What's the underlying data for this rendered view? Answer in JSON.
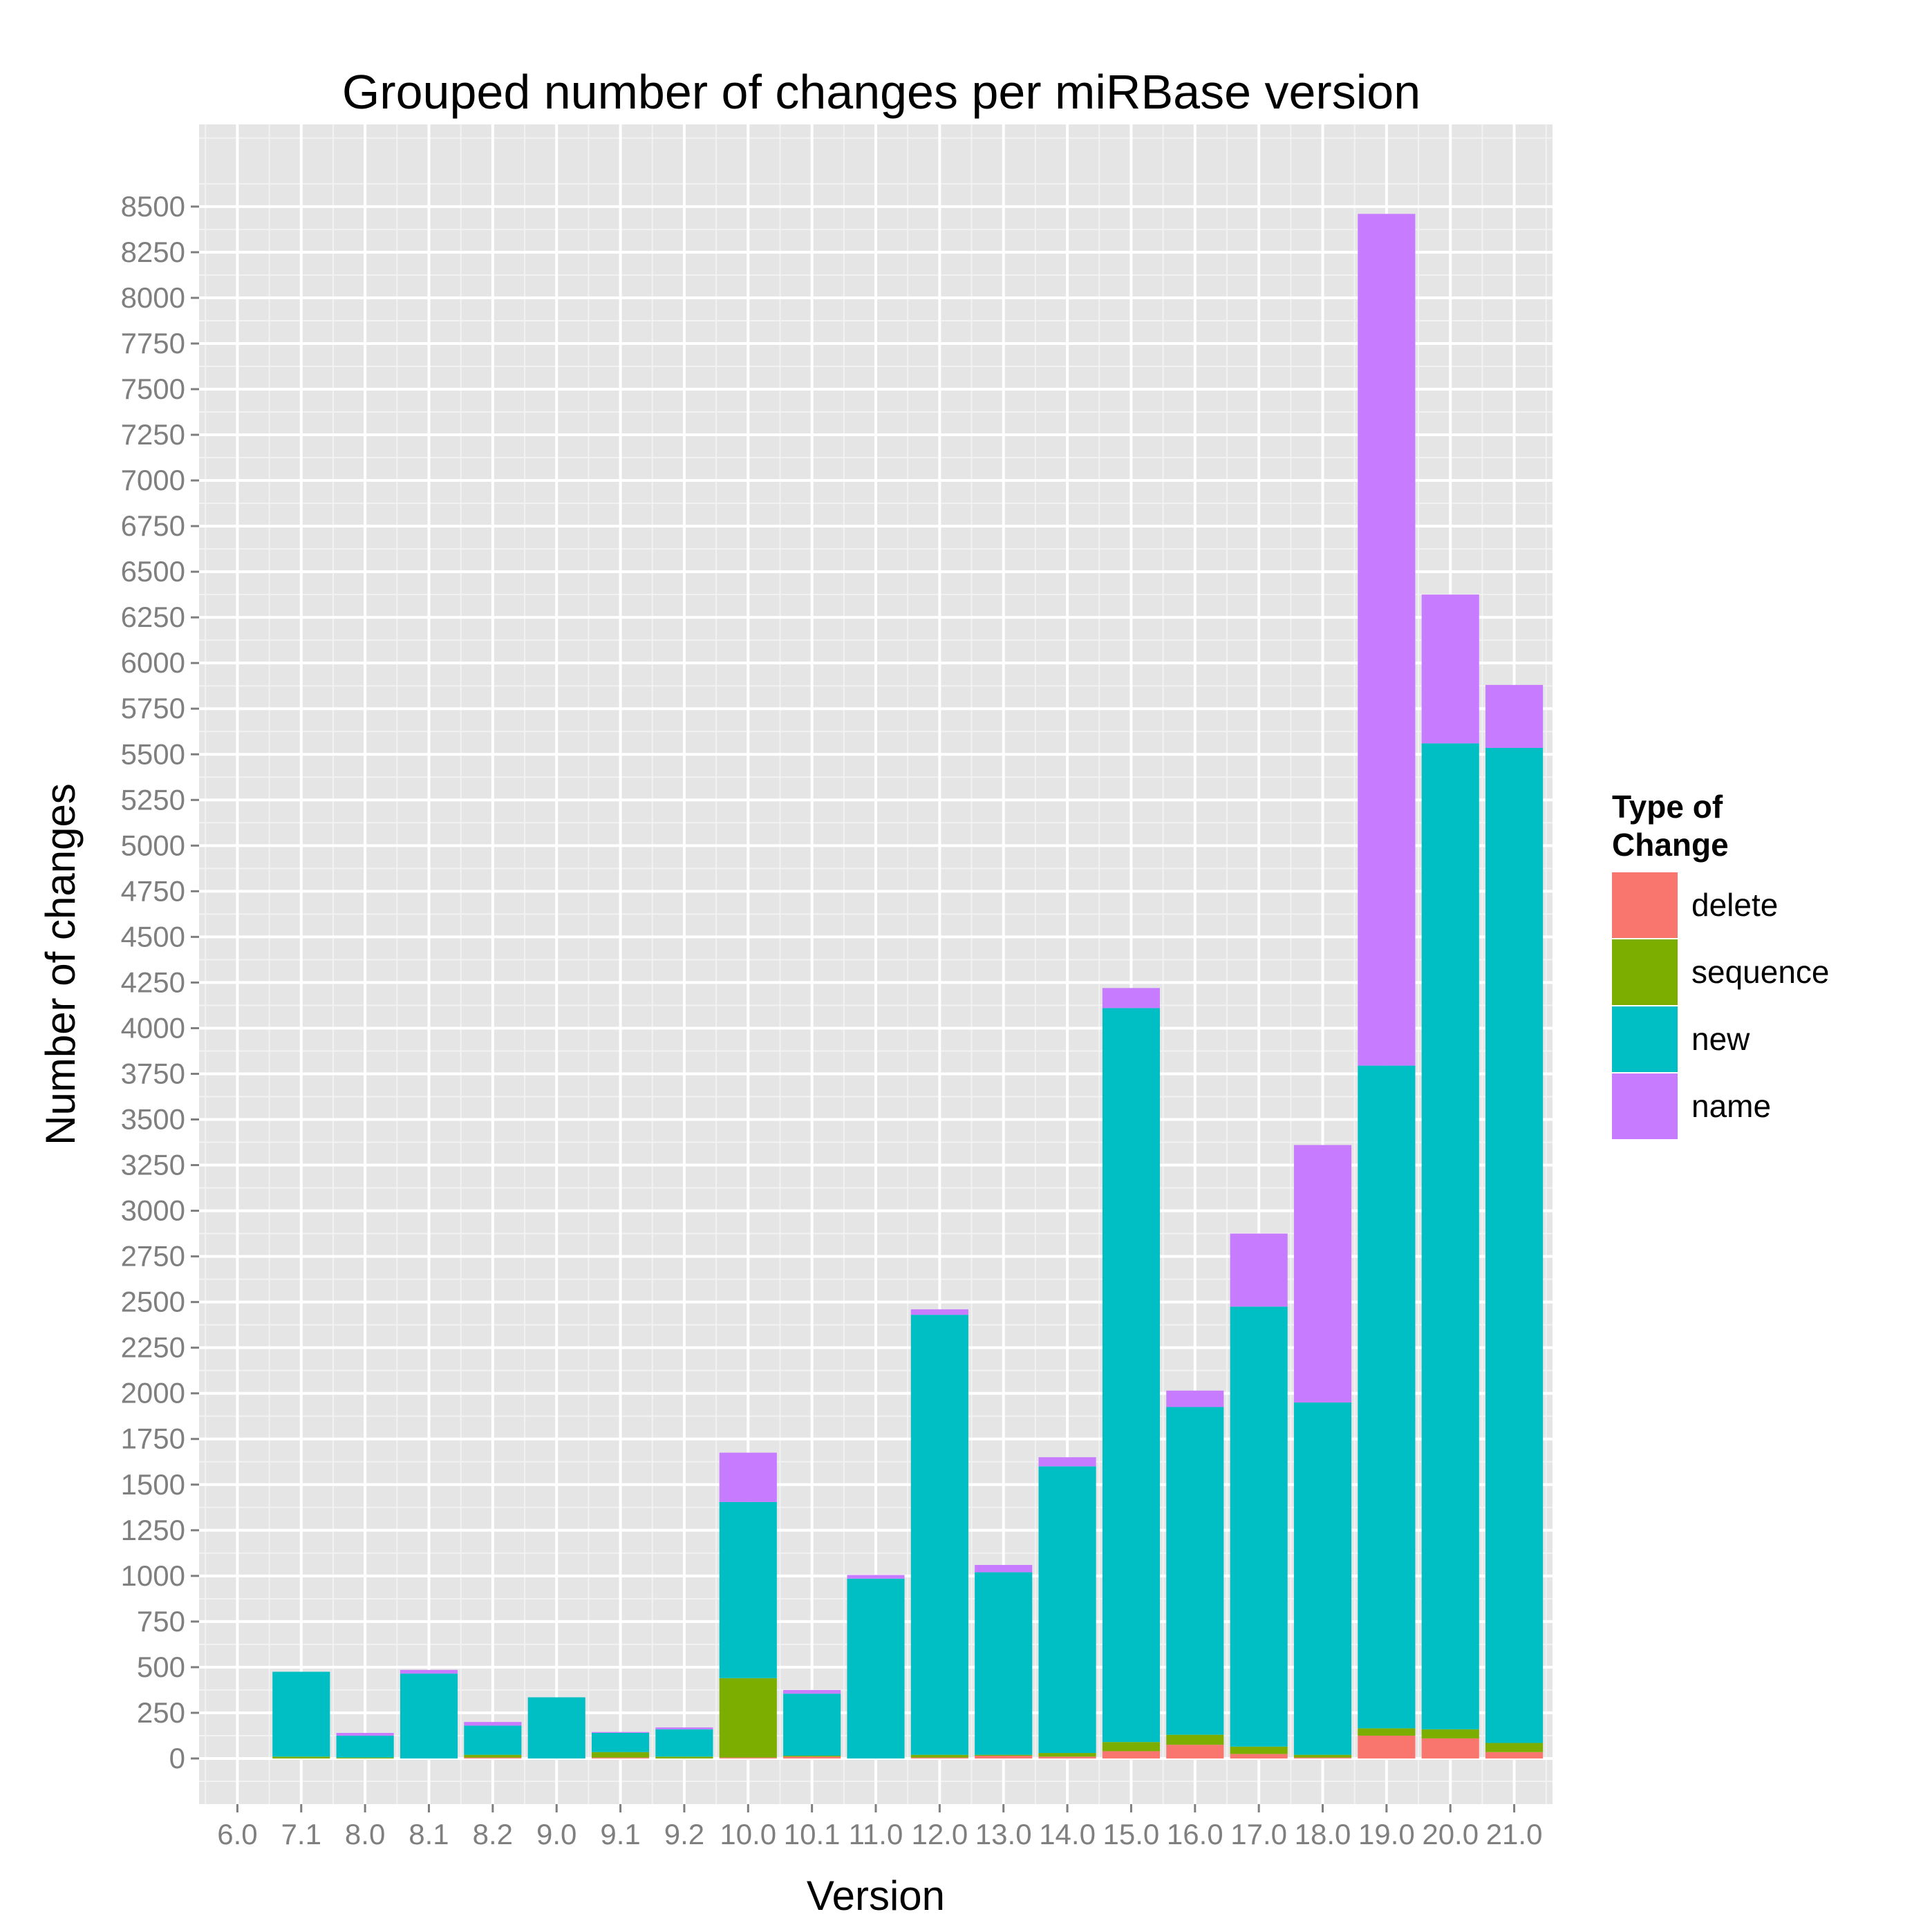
{
  "chart_data": {
    "type": "bar",
    "stacked": true,
    "title": "Grouped number of changes per miRBase version",
    "xlabel": "Version",
    "ylabel": "Number of changes",
    "ylim": [
      -250,
      8950
    ],
    "yticks": [
      0,
      250,
      500,
      750,
      1000,
      1250,
      1500,
      1750,
      2000,
      2250,
      2500,
      2750,
      3000,
      3250,
      3500,
      3750,
      4000,
      4250,
      4500,
      4750,
      5000,
      5250,
      5500,
      5750,
      6000,
      6250,
      6500,
      6750,
      7000,
      7250,
      7500,
      7750,
      8000,
      8250,
      8500
    ],
    "grid": true,
    "categories": [
      "6.0",
      "7.1",
      "8.0",
      "8.1",
      "8.2",
      "9.0",
      "9.1",
      "9.2",
      "10.0",
      "10.1",
      "11.0",
      "12.0",
      "13.0",
      "14.0",
      "15.0",
      "16.0",
      "17.0",
      "18.0",
      "19.0",
      "20.0",
      "21.0"
    ],
    "series": [
      {
        "name": "delete",
        "color": "#F8766D",
        "values": [
          0,
          0,
          0,
          0,
          5,
          0,
          5,
          0,
          5,
          10,
          0,
          5,
          15,
          10,
          40,
          75,
          25,
          5,
          125,
          110,
          35
        ]
      },
      {
        "name": "sequence",
        "color": "#7CAE00",
        "values": [
          0,
          10,
          5,
          0,
          15,
          0,
          30,
          10,
          435,
          5,
          0,
          15,
          5,
          20,
          50,
          55,
          40,
          15,
          40,
          50,
          50
        ]
      },
      {
        "name": "new",
        "color": "#00BFC4",
        "values": [
          0,
          465,
          120,
          465,
          160,
          335,
          105,
          150,
          965,
          340,
          985,
          2410,
          1000,
          1570,
          4020,
          1795,
          2410,
          1930,
          3630,
          5400,
          5450
        ]
      },
      {
        "name": "name",
        "color": "#C77CFF",
        "values": [
          0,
          0,
          15,
          20,
          20,
          0,
          5,
          10,
          270,
          20,
          20,
          30,
          40,
          50,
          110,
          90,
          400,
          1410,
          4665,
          815,
          345
        ]
      }
    ],
    "legend": {
      "title_line1": "Type of",
      "title_line2": "Change",
      "position": "right"
    }
  }
}
